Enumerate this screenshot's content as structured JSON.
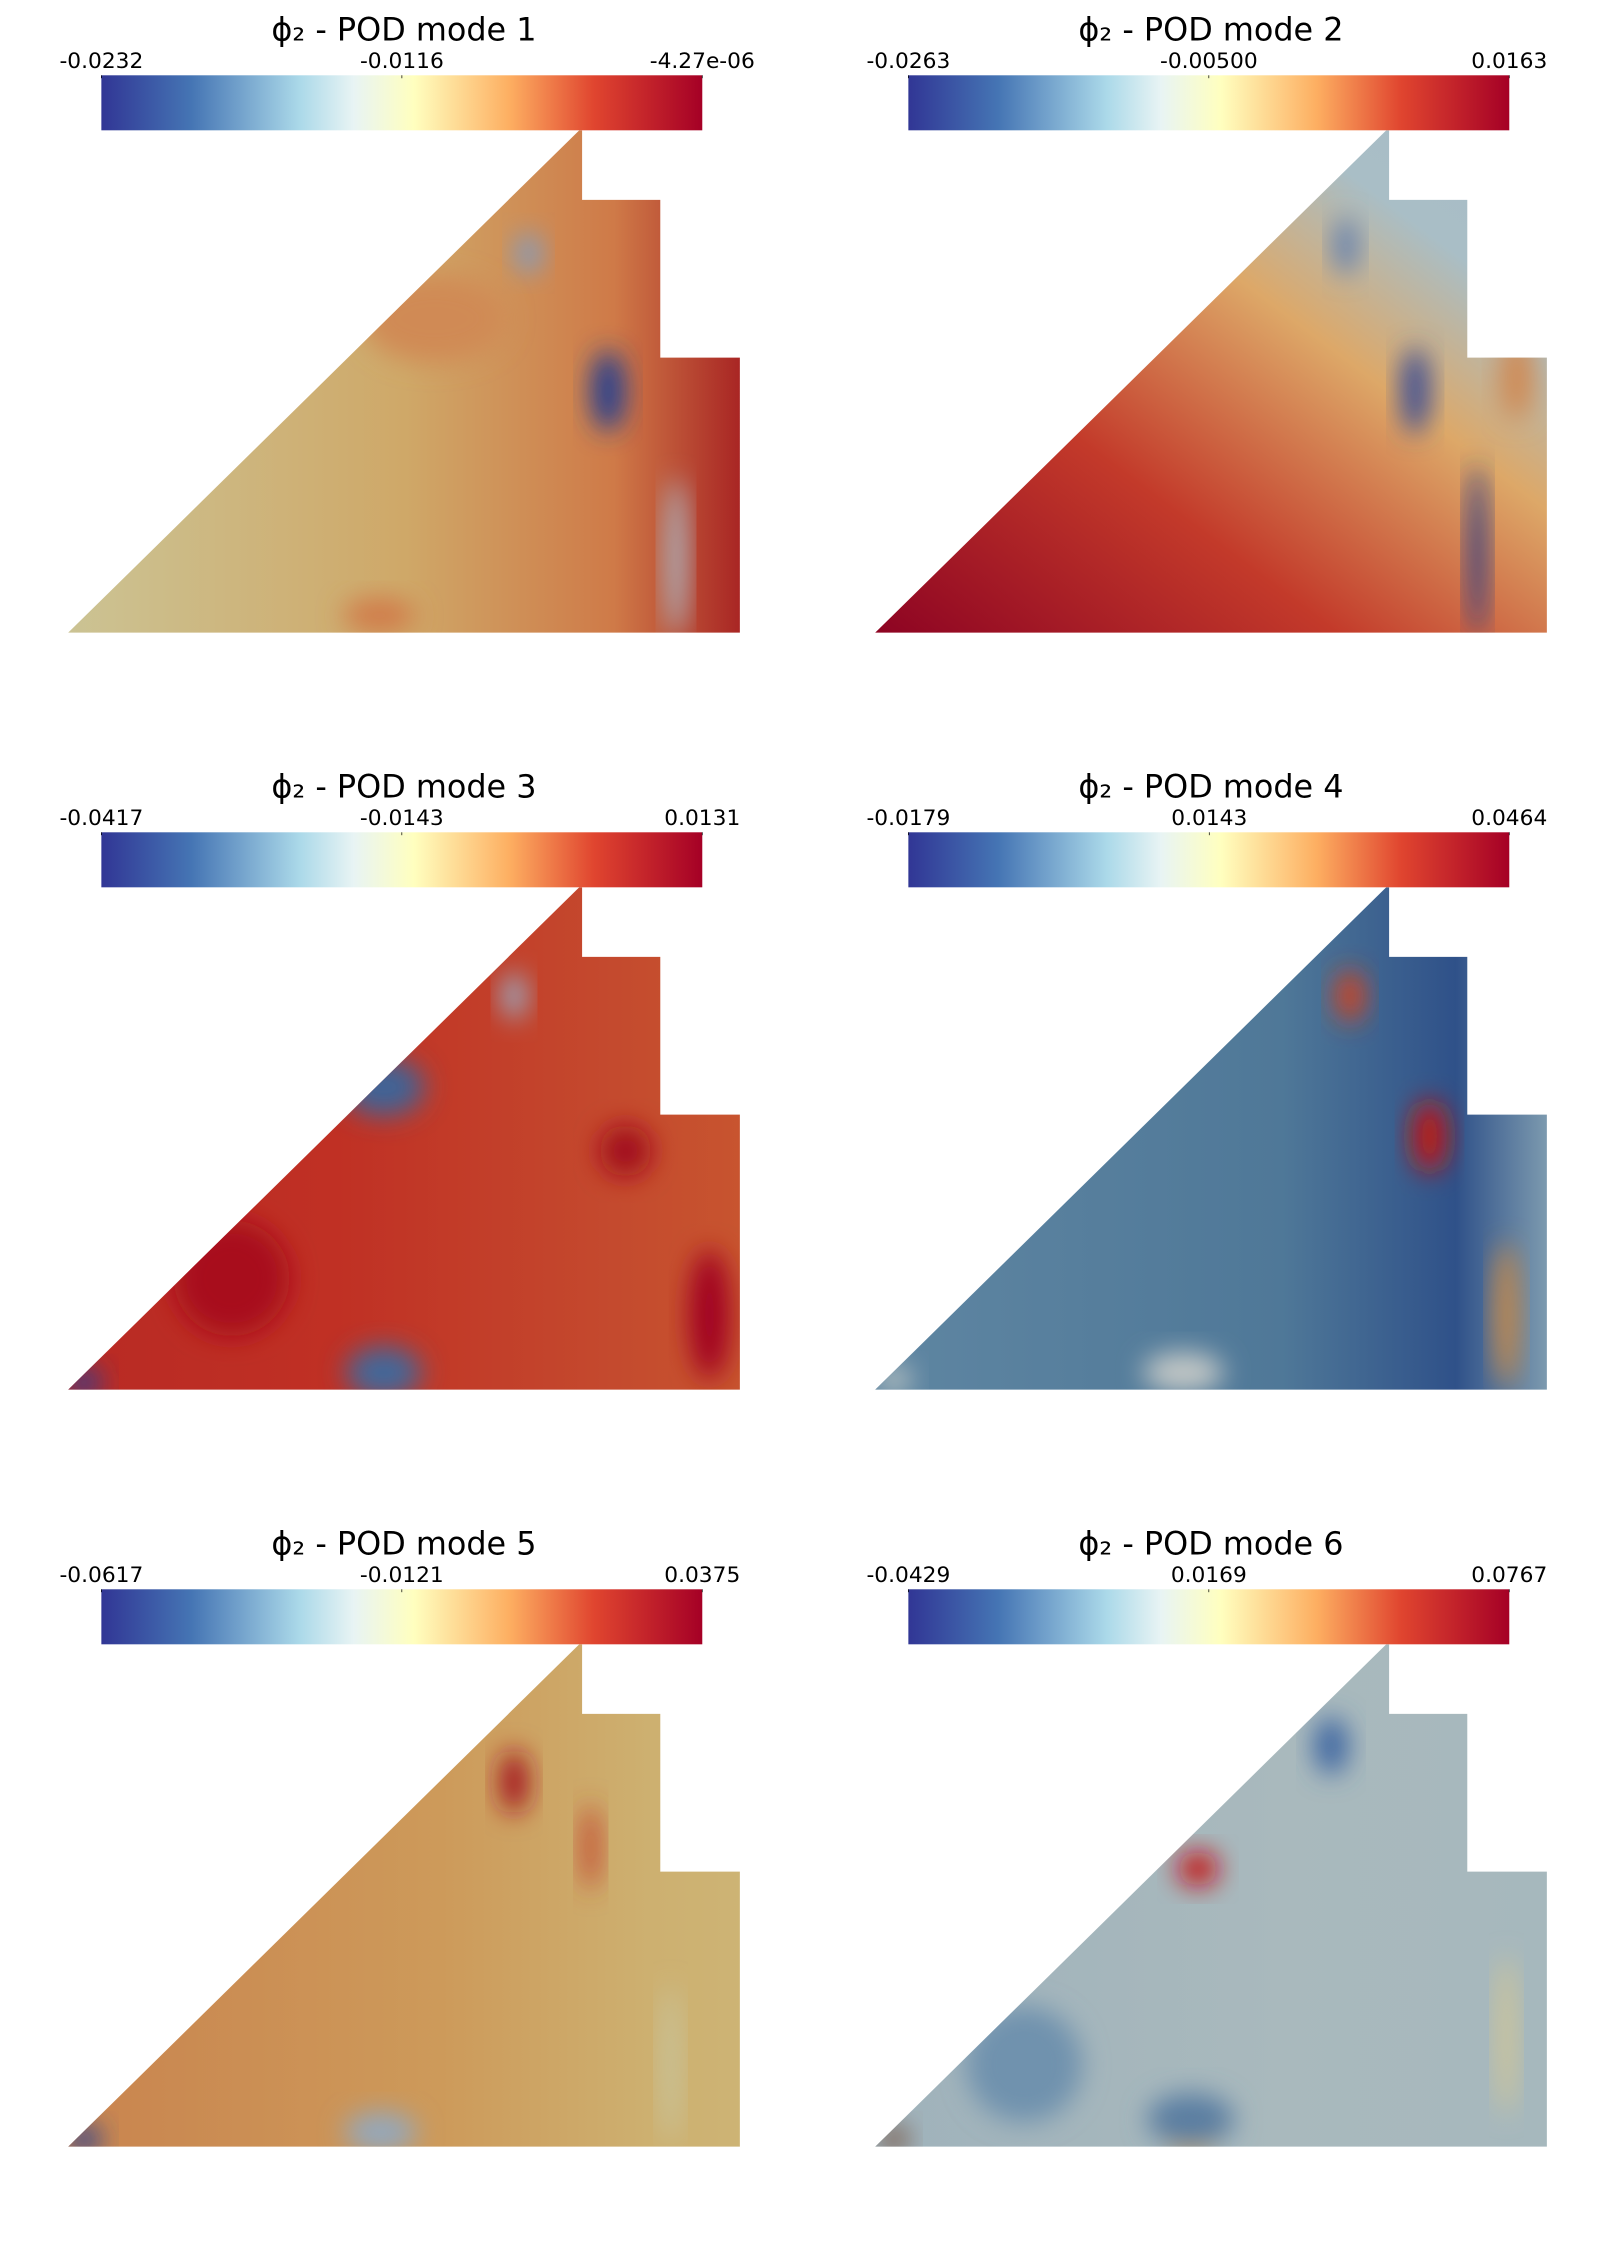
{
  "chart_data": [
    {
      "type": "field",
      "title": "ϕ₂ - POD mode 1",
      "clim": [
        -0.0232,
        -4.27e-06
      ],
      "cticks": [
        -0.0232,
        -0.0116,
        {
          "value": -4.27e-06,
          "label": "-4.27e-06"
        }
      ]
    },
    {
      "type": "field",
      "title": "ϕ₂ - POD mode 2",
      "clim": [
        -0.0263,
        0.0163
      ],
      "cticks": [
        -0.0263,
        {
          "value": -0.005,
          "label": "-0.00500"
        },
        0.0163
      ]
    },
    {
      "type": "field",
      "title": "ϕ₂ - POD mode 3",
      "clim": [
        -0.0417,
        0.0131
      ],
      "cticks": [
        -0.0417,
        -0.0143,
        0.0131
      ]
    },
    {
      "type": "field",
      "title": "ϕ₂ - POD mode 4",
      "clim": [
        -0.0179,
        0.0464
      ],
      "cticks": [
        -0.0179,
        0.0143,
        0.0464
      ]
    },
    {
      "type": "field",
      "title": "ϕ₂ - POD mode 5",
      "clim": [
        -0.0617,
        0.0375
      ],
      "cticks": [
        -0.0617,
        -0.0121,
        0.0375
      ]
    },
    {
      "type": "field",
      "title": "ϕ₂ - POD mode 6",
      "clim": [
        -0.0429,
        0.0767
      ],
      "cticks": [
        -0.0429,
        0.0169,
        0.0767
      ]
    }
  ]
}
